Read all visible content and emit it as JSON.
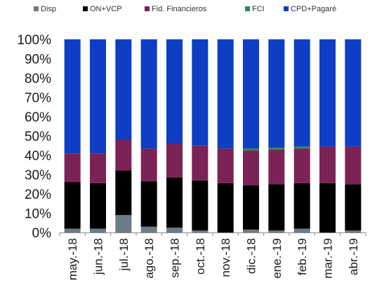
{
  "chart_data": {
    "type": "bar",
    "stacked": true,
    "percent": true,
    "title": "",
    "xlabel": "",
    "ylabel": "",
    "ylim": [
      0,
      100
    ],
    "yticks": [
      "0%",
      "10%",
      "20%",
      "30%",
      "40%",
      "50%",
      "60%",
      "70%",
      "80%",
      "90%",
      "100%"
    ],
    "categories": [
      "may.-18",
      "jun.-18",
      "jul.-18",
      "ago.-18",
      "sep.-18",
      "oct.-18",
      "nov.-18",
      "dic.-18",
      "ene.-19",
      "feb.-19",
      "mar.-19",
      "abr.-19"
    ],
    "legend_position": "top",
    "grid": false,
    "series": [
      {
        "name": "Disp",
        "color": "#6d7b84",
        "values": [
          2,
          2,
          9,
          3,
          2.5,
          1,
          0,
          1.5,
          1,
          2,
          0,
          1
        ]
      },
      {
        "name": "ON+VCP",
        "color": "#000000",
        "values": [
          24,
          23.5,
          23,
          23.5,
          26,
          26,
          25.5,
          23,
          24,
          23.5,
          25.5,
          24
        ]
      },
      {
        "name": "Fid. Financieros",
        "color": "#7b2356",
        "values": [
          15,
          15.5,
          16,
          17,
          17.5,
          18,
          18,
          18,
          18,
          18,
          19,
          19.5
        ]
      },
      {
        "name": "FCI",
        "color": "#2e8b57",
        "values": [
          0,
          0,
          0,
          0,
          0,
          0,
          0,
          1,
          1,
          1,
          0,
          0
        ]
      },
      {
        "name": "CPD+Pagaré",
        "color": "#0d3ec4",
        "values": [
          59,
          59,
          52,
          56.5,
          54,
          55,
          56.5,
          56.5,
          56,
          55.5,
          55.5,
          55.5
        ]
      }
    ]
  }
}
